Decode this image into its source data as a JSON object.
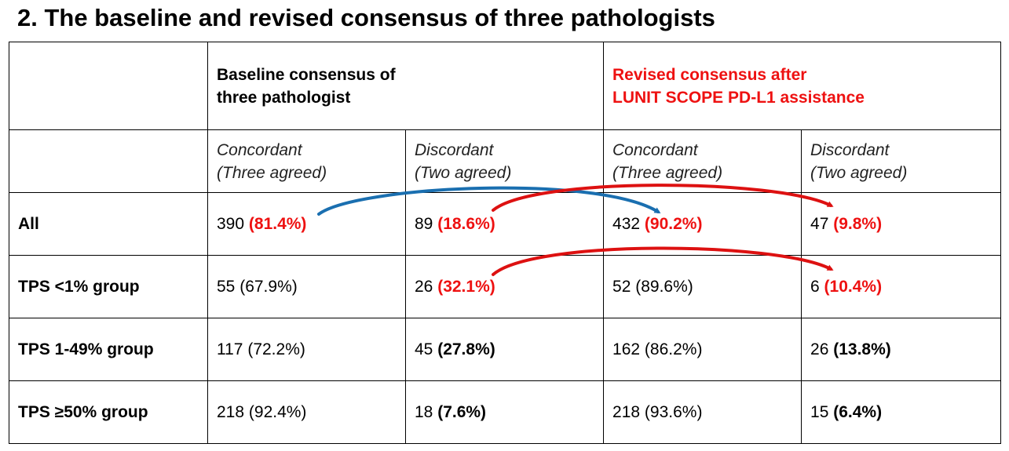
{
  "title": "2. The baseline and revised consensus of three pathologists",
  "header": {
    "baseline": {
      "line1": "Baseline consensus of",
      "line2": "three pathologist"
    },
    "revised": {
      "line1": "Revised consensus after",
      "line2": "LUNIT SCOPE PD-L1 assistance"
    }
  },
  "subheader": {
    "concordant": {
      "line1": "Concordant",
      "line2": "(Three agreed)"
    },
    "discordant": {
      "line1": "Discordant",
      "line2": "(Two agreed)"
    }
  },
  "rows": [
    {
      "label": "All",
      "cells": [
        {
          "count": "390",
          "pct": "(81.4%)",
          "style": "red"
        },
        {
          "count": "89",
          "pct": "(18.6%)",
          "style": "red"
        },
        {
          "count": "432",
          "pct": "(90.2%)",
          "style": "red"
        },
        {
          "count": "47",
          "pct": "(9.8%)",
          "style": "red"
        }
      ]
    },
    {
      "label": "TPS <1% group",
      "cells": [
        {
          "count": "55",
          "pct": "(67.9%)",
          "style": "normal"
        },
        {
          "count": "26",
          "pct": "(32.1%)",
          "style": "red"
        },
        {
          "count": "52",
          "pct": "(89.6%)",
          "style": "normal"
        },
        {
          "count": "6",
          "pct": "(10.4%)",
          "style": "red"
        }
      ]
    },
    {
      "label": "TPS 1-49% group",
      "cells": [
        {
          "count": "117",
          "pct": "(72.2%)",
          "style": "normal"
        },
        {
          "count": "45",
          "pct": "(27.8%)",
          "style": "bold"
        },
        {
          "count": "162",
          "pct": "(86.2%)",
          "style": "normal"
        },
        {
          "count": "26",
          "pct": "(13.8%)",
          "style": "bold"
        }
      ]
    },
    {
      "label": "TPS ≥50% group",
      "cells": [
        {
          "count": "218",
          "pct": "(92.4%)",
          "style": "normal"
        },
        {
          "count": "18",
          "pct": "(7.6%)",
          "style": "bold"
        },
        {
          "count": "218",
          "pct": "(93.6%)",
          "style": "normal"
        },
        {
          "count": "15",
          "pct": "(6.4%)",
          "style": "bold"
        }
      ]
    }
  ],
  "colors": {
    "text": "#000000",
    "highlight_red": "#ee1111",
    "arrow_blue": "#1a6fb0",
    "arrow_red": "#dd1111",
    "border": "#000000"
  }
}
